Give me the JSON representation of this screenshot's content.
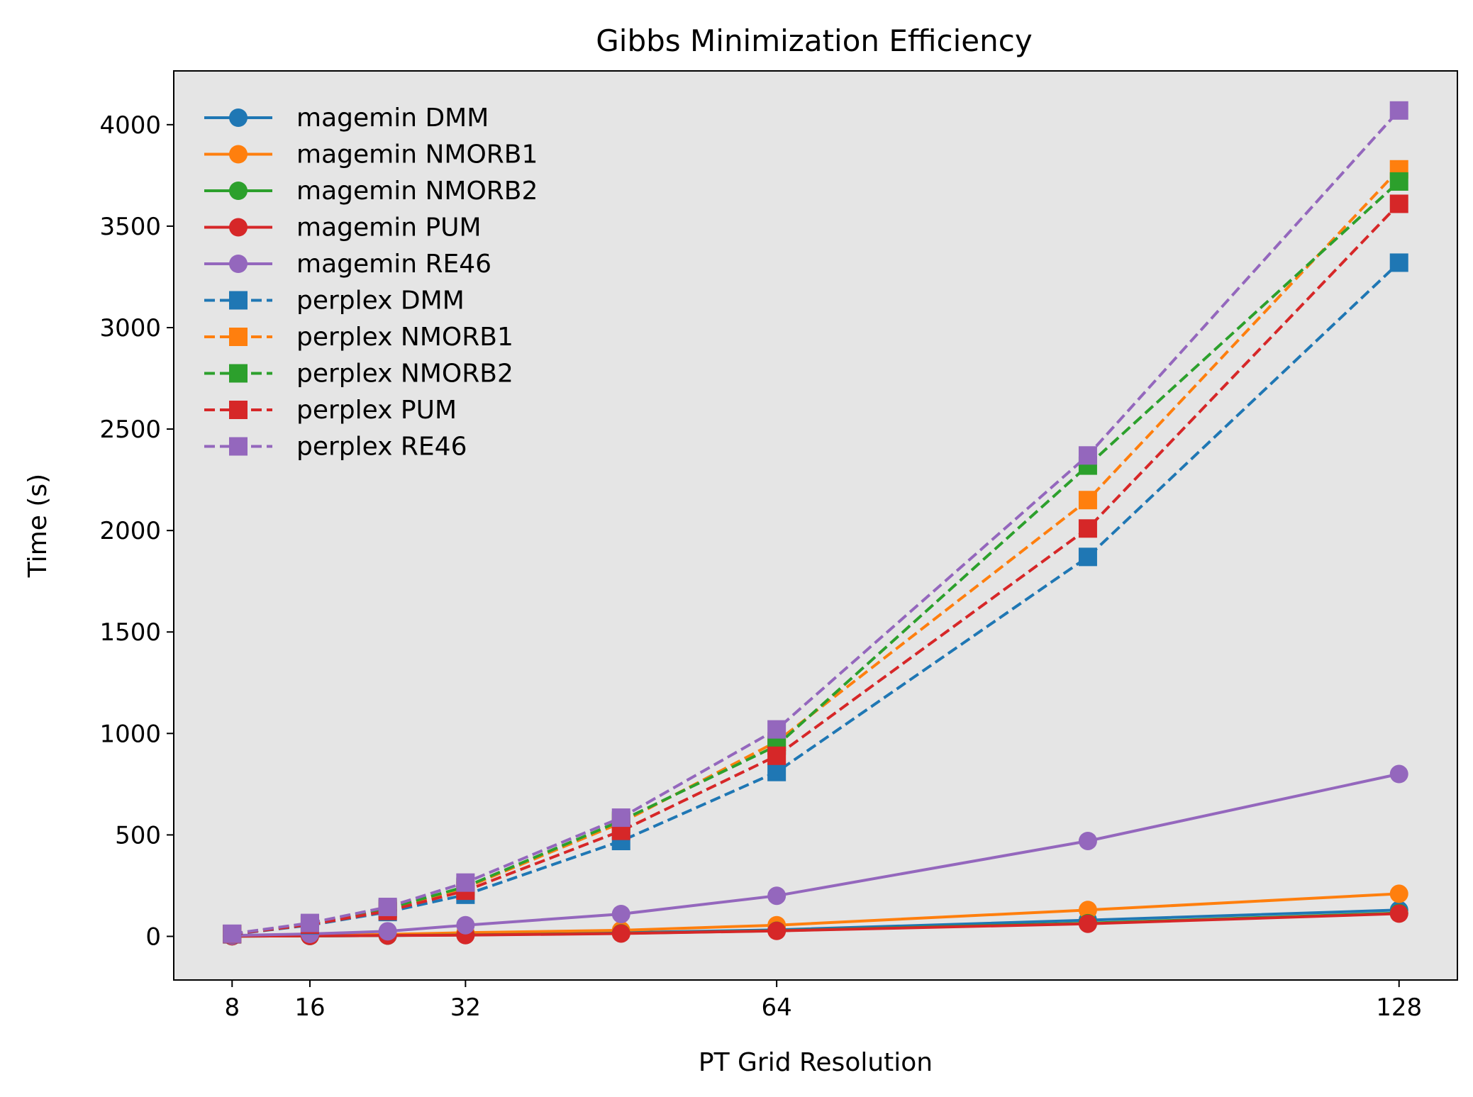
{
  "chart_data": {
    "type": "line",
    "title": "Gibbs Minimization Efficiency",
    "xlabel": "PT Grid Resolution",
    "ylabel": "Time (s)",
    "xticks": [
      8,
      16,
      32,
      64,
      128
    ],
    "yticks": [
      0,
      500,
      1000,
      1500,
      2000,
      2500,
      3000,
      3500,
      4000
    ],
    "xlim": [
      2,
      134
    ],
    "ylim": [
      -215,
      4265
    ],
    "grid": false,
    "legend_position": "upper-left",
    "background": "#e5e5e5",
    "x": [
      8,
      16,
      24,
      32,
      48,
      64,
      96,
      128
    ],
    "series": [
      {
        "name": "magemin DMM",
        "color": "#1f77b4",
        "line": "solid",
        "marker": "circle",
        "values": [
          1,
          2,
          4,
          8,
          18,
          32,
          80,
          130
        ]
      },
      {
        "name": "magemin NMORB1",
        "color": "#ff7f0e",
        "line": "solid",
        "marker": "circle",
        "values": [
          2,
          5,
          10,
          18,
          30,
          55,
          130,
          210
        ]
      },
      {
        "name": "magemin NMORB2",
        "color": "#2ca02c",
        "line": "solid",
        "marker": "circle",
        "values": [
          1,
          2,
          4,
          7,
          15,
          28,
          65,
          115
        ]
      },
      {
        "name": "magemin PUM",
        "color": "#d62728",
        "line": "solid",
        "marker": "circle",
        "values": [
          1,
          2,
          4,
          6,
          14,
          27,
          62,
          112
        ]
      },
      {
        "name": "magemin RE46",
        "color": "#9467bd",
        "line": "solid",
        "marker": "circle",
        "values": [
          4,
          12,
          25,
          55,
          110,
          200,
          470,
          800
        ]
      },
      {
        "name": "perplex DMM",
        "color": "#1f77b4",
        "line": "dashed",
        "marker": "square",
        "values": [
          10,
          55,
          120,
          205,
          470,
          810,
          1870,
          3320
        ]
      },
      {
        "name": "perplex NMORB1",
        "color": "#ff7f0e",
        "line": "dashed",
        "marker": "square",
        "values": [
          12,
          62,
          135,
          240,
          560,
          960,
          2150,
          3780
        ]
      },
      {
        "name": "perplex NMORB2",
        "color": "#2ca02c",
        "line": "dashed",
        "marker": "square",
        "values": [
          12,
          63,
          138,
          245,
          570,
          940,
          2320,
          3720
        ]
      },
      {
        "name": "perplex PUM",
        "color": "#d62728",
        "line": "dashed",
        "marker": "square",
        "values": [
          11,
          58,
          125,
          225,
          520,
          890,
          2010,
          3610
        ]
      },
      {
        "name": "perplex RE46",
        "color": "#9467bd",
        "line": "dashed",
        "marker": "square",
        "values": [
          13,
          66,
          145,
          265,
          585,
          1020,
          2370,
          4070
        ]
      }
    ]
  }
}
